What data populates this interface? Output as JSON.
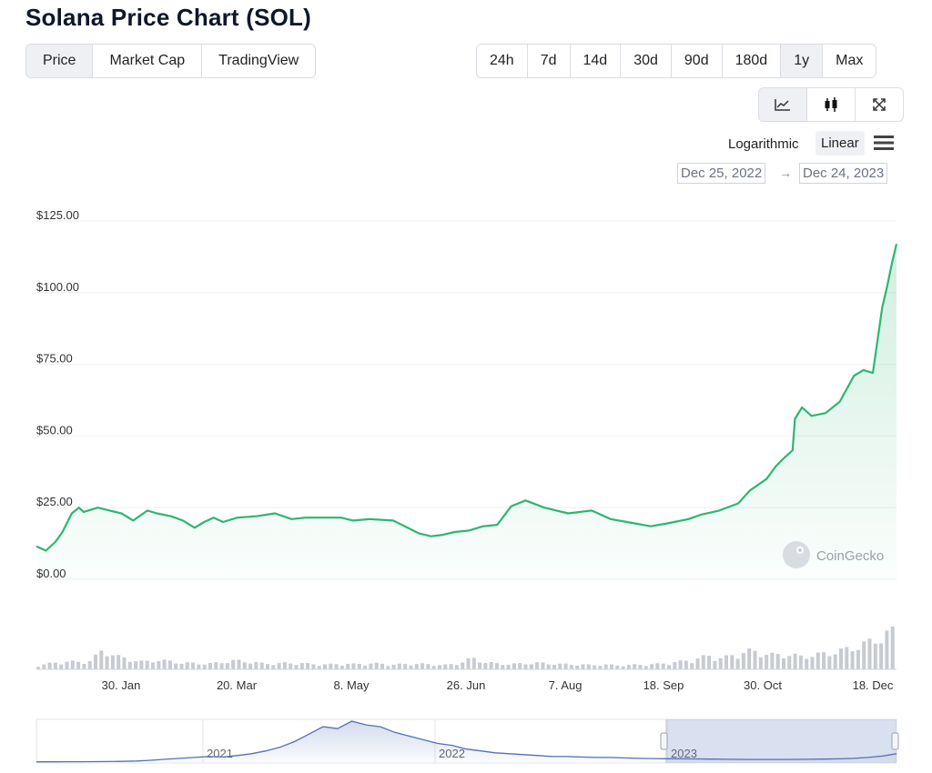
{
  "page": {
    "title": "Solana Price Chart (SOL)",
    "view_tabs": [
      "Price",
      "Market Cap",
      "TradingView"
    ],
    "active_view": "Price",
    "range_tabs": [
      "24h",
      "7d",
      "14d",
      "30d",
      "90d",
      "180d",
      "1y",
      "Max"
    ],
    "active_range": "1y",
    "chart_type_icons": [
      "line-chart-icon",
      "candlestick-icon",
      "fullscreen-icon"
    ],
    "scale_options": {
      "log": "Logarithmic",
      "linear": "Linear"
    },
    "active_scale": "Linear",
    "date_from": "Dec 25, 2022",
    "date_arrow": "→",
    "date_to": "Dec 24, 2023",
    "watermark": "CoinGecko",
    "colors": {
      "line": "#2eb670",
      "navigator": "#5470b8",
      "grid": "#eceff3"
    }
  },
  "chart_data": [
    {
      "type": "area",
      "title": "",
      "y_ticks": [
        "$0.00",
        "$25.00",
        "$50.00",
        "$75.00",
        "$100.00",
        "$125.00"
      ],
      "ylim": [
        0,
        125
      ],
      "x_ticks": [
        "30. Jan",
        "20. Mar",
        "8. May",
        "26. Jun",
        "7. Aug",
        "18. Sep",
        "30. Oct",
        "18. Dec"
      ],
      "x_start": "2022-12-25",
      "x_end": "2023-12-24",
      "series": [
        {
          "x": [
            "2022-12-25",
            "2022-12-29",
            "2023-01-02",
            "2023-01-05",
            "2023-01-09",
            "2023-01-12",
            "2023-01-14",
            "2023-01-20",
            "2023-01-25",
            "2023-01-30",
            "2023-02-04",
            "2023-02-10",
            "2023-02-14",
            "2023-02-20",
            "2023-02-25",
            "2023-03-02",
            "2023-03-06",
            "2023-03-10",
            "2023-03-14",
            "2023-03-20",
            "2023-03-28",
            "2023-04-05",
            "2023-04-12",
            "2023-04-18",
            "2023-04-26",
            "2023-05-03",
            "2023-05-08",
            "2023-05-15",
            "2023-05-25",
            "2023-06-05",
            "2023-06-10",
            "2023-06-15",
            "2023-06-20",
            "2023-06-26",
            "2023-07-02",
            "2023-07-08",
            "2023-07-14",
            "2023-07-20",
            "2023-07-28",
            "2023-08-07",
            "2023-08-17",
            "2023-08-25",
            "2023-09-01",
            "2023-09-11",
            "2023-09-18",
            "2023-09-27",
            "2023-10-02",
            "2023-10-10",
            "2023-10-18",
            "2023-10-23",
            "2023-10-30",
            "2023-11-03",
            "2023-11-06",
            "2023-11-10",
            "2023-11-11",
            "2023-11-14",
            "2023-11-18",
            "2023-11-24",
            "2023-11-30",
            "2023-12-06",
            "2023-12-10",
            "2023-12-14",
            "2023-12-18",
            "2023-12-20",
            "2023-12-22",
            "2023-12-24"
          ],
          "values": [
            11.5,
            10,
            13,
            16.5,
            23,
            25,
            23.5,
            25,
            24,
            23,
            20.5,
            24,
            23,
            22,
            20.5,
            18,
            20,
            21.5,
            20,
            21.5,
            22,
            23,
            21,
            21.5,
            21.5,
            21.5,
            20.5,
            21,
            20.5,
            16,
            15,
            15.5,
            16.5,
            17,
            18.5,
            19,
            25.5,
            27.5,
            25,
            23,
            24,
            21,
            20,
            18.5,
            19.5,
            21,
            22.5,
            24,
            26.5,
            31,
            35,
            39.5,
            42,
            45,
            56,
            60,
            57,
            58,
            62,
            71,
            73,
            72,
            95,
            102,
            110,
            117
          ]
        }
      ],
      "volume": [
        1,
        1.5,
        2,
        1.8,
        2.2,
        5,
        3.2,
        2.5,
        1.8,
        2.4,
        2,
        1.6,
        1.5,
        1.4,
        1.8,
        2.2,
        1.9,
        1.5,
        1.4,
        1.6,
        1.5,
        1.3,
        1.2,
        1.4,
        1.3,
        1.5,
        1.4,
        1.2,
        1.3,
        1.4,
        1.2,
        1.1,
        1.5,
        2.8,
        1.8,
        1.4,
        1.3,
        1.5,
        1.6,
        1.4,
        1.3,
        1.2,
        1.1,
        1.2,
        1.0,
        1.1,
        1.2,
        1.3,
        1.6,
        2.0,
        2.6,
        3.4,
        2.8,
        3.6,
        4.6,
        4.2,
        3.5,
        3.8,
        3.2,
        3.6,
        4.0,
        4.6,
        5.5,
        6.5,
        8.0,
        9.5
      ]
    },
    {
      "type": "area",
      "title": "",
      "x_ticks": [
        "2021",
        "2022",
        "2023"
      ],
      "selected_range": [
        "2022-12-25",
        "2023-12-24"
      ],
      "values": [
        0.3,
        0.3,
        0.4,
        0.4,
        0.5,
        0.6,
        0.8,
        1.2,
        2,
        3,
        4,
        5,
        6,
        5.5,
        7,
        9,
        12,
        16,
        22,
        30,
        38,
        36,
        44,
        40,
        38,
        32,
        28,
        24,
        20,
        18,
        14,
        12,
        10,
        9,
        8,
        7,
        6,
        6,
        5.5,
        5,
        5,
        4.5,
        4,
        3.8,
        3.6,
        3.5,
        3.4,
        3.2,
        3.0,
        2.9,
        2.8,
        2.8,
        2.8,
        2.9,
        3.0,
        3.2,
        3.5,
        4.0,
        5.0,
        6.5,
        9.0
      ]
    }
  ]
}
